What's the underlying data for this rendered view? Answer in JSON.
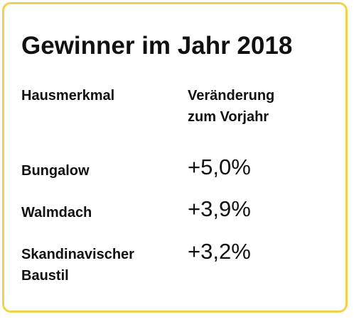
{
  "title": "Gewinner im Jahr 2018",
  "columns": {
    "feature": "Hausmerkmal",
    "change_line1": "Veränderung",
    "change_line2": "zum Vorjahr"
  },
  "rows": [
    {
      "label": "Bungalow",
      "value": "+5,0%"
    },
    {
      "label": "Walmdach",
      "value": "+3,9%"
    },
    {
      "label_line1": "Skandinavischer",
      "label_line2": "Baustil",
      "value": "+3,2%"
    }
  ],
  "colors": {
    "border": "#f2d24a",
    "text": "#111111",
    "background": "#ffffff"
  }
}
